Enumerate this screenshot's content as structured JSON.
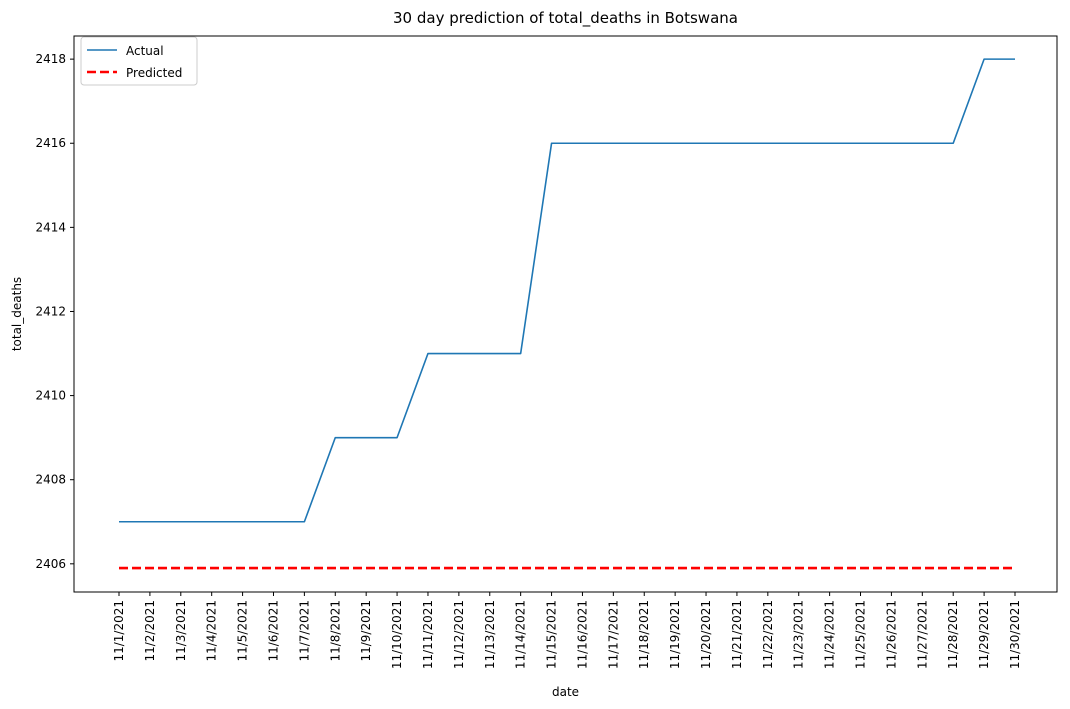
{
  "chart_data": {
    "type": "line",
    "title": "30 day prediction of total_deaths in Botswana",
    "xlabel": "date",
    "ylabel": "total_deaths",
    "x": [
      "11/1/2021",
      "11/2/2021",
      "11/3/2021",
      "11/4/2021",
      "11/5/2021",
      "11/6/2021",
      "11/7/2021",
      "11/8/2021",
      "11/9/2021",
      "11/10/2021",
      "11/11/2021",
      "11/12/2021",
      "11/13/2021",
      "11/14/2021",
      "11/15/2021",
      "11/16/2021",
      "11/17/2021",
      "11/18/2021",
      "11/19/2021",
      "11/20/2021",
      "11/21/2021",
      "11/22/2021",
      "11/23/2021",
      "11/24/2021",
      "11/25/2021",
      "11/26/2021",
      "11/27/2021",
      "11/28/2021",
      "11/29/2021",
      "11/30/2021"
    ],
    "series": [
      {
        "name": "Actual",
        "color": "#1f77b4",
        "style": "solid",
        "values": [
          2407,
          2407,
          2407,
          2407,
          2407,
          2407,
          2407,
          2409,
          2409,
          2409,
          2411,
          2411,
          2411,
          2411,
          2416,
          2416,
          2416,
          2416,
          2416,
          2416,
          2416,
          2416,
          2416,
          2416,
          2416,
          2416,
          2416,
          2416,
          2418,
          2418
        ]
      },
      {
        "name": "Predicted",
        "color": "#ff0000",
        "style": "dashed",
        "values": [
          2405.9,
          2405.9,
          2405.9,
          2405.9,
          2405.9,
          2405.9,
          2405.9,
          2405.9,
          2405.9,
          2405.9,
          2405.9,
          2405.9,
          2405.9,
          2405.9,
          2405.9,
          2405.9,
          2405.9,
          2405.9,
          2405.9,
          2405.9,
          2405.9,
          2405.9,
          2405.9,
          2405.9,
          2405.9,
          2405.9,
          2405.9,
          2405.9,
          2405.9,
          2405.9
        ]
      }
    ],
    "yticks": [
      2406,
      2408,
      2410,
      2412,
      2414,
      2416,
      2418
    ],
    "ylim": [
      2405.33,
      2418.55
    ],
    "grid": false,
    "legend_position": "top-left"
  }
}
